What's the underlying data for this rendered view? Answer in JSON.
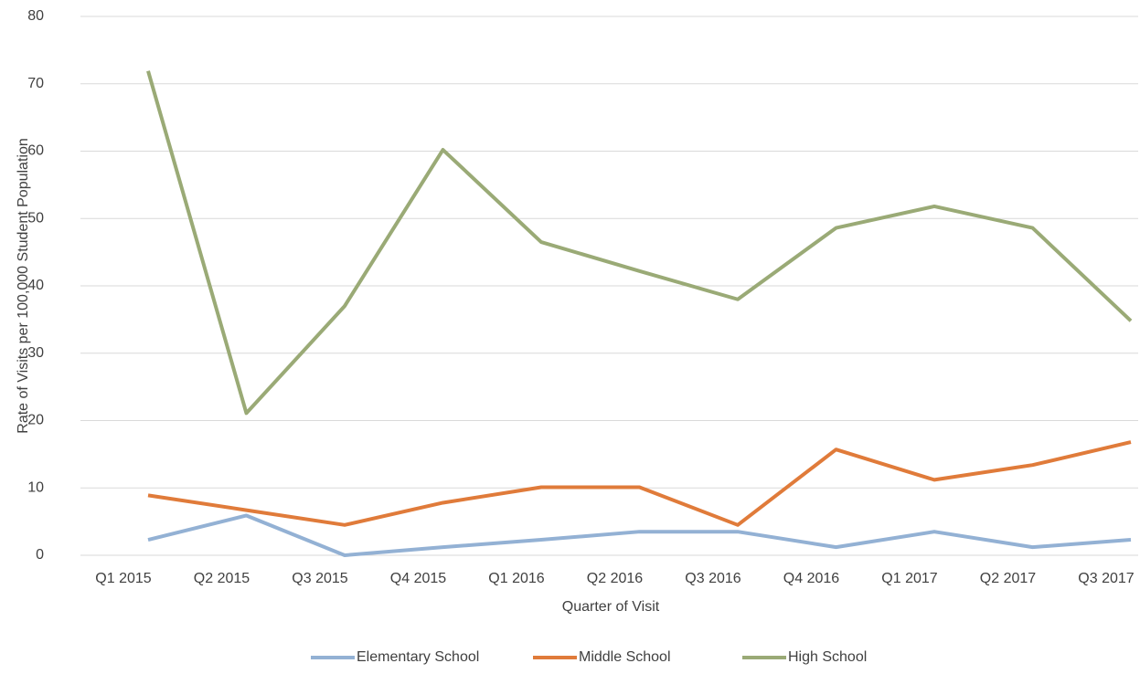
{
  "chart_data": {
    "type": "line",
    "xlabel": "Quarter of Visit",
    "ylabel": "Rate  of Visits  per 100,000 Student Population",
    "categories": [
      "Q1 2015",
      "Q2 2015",
      "Q3 2015",
      "Q4 2015",
      "Q1 2016",
      "Q2 2016",
      "Q3 2016",
      "Q4 2016",
      "Q1 2017",
      "Q2 2017",
      "Q3 2017"
    ],
    "series": [
      {
        "name": "Elementary School",
        "color": "#93b1d4",
        "values": [
          2.3,
          5.9,
          0,
          1.2,
          2.3,
          3.5,
          3.5,
          1.2,
          3.5,
          1.2,
          2.3
        ]
      },
      {
        "name": "Middle School",
        "color": "#e07b3a",
        "values": [
          8.9,
          6.7,
          4.5,
          7.8,
          10.1,
          10.1,
          4.5,
          15.7,
          11.2,
          13.4,
          16.8
        ]
      },
      {
        "name": "High School",
        "color": "#9aaa76",
        "values": [
          71.9,
          21.1,
          37,
          60.2,
          46.5,
          42.2,
          38,
          48.6,
          51.8,
          48.6,
          34.8
        ]
      }
    ],
    "ylim": [
      0,
      80
    ],
    "yticks": [
      0,
      10,
      20,
      30,
      40,
      50,
      60,
      70,
      80
    ],
    "grid": true,
    "legend": "bottom"
  }
}
